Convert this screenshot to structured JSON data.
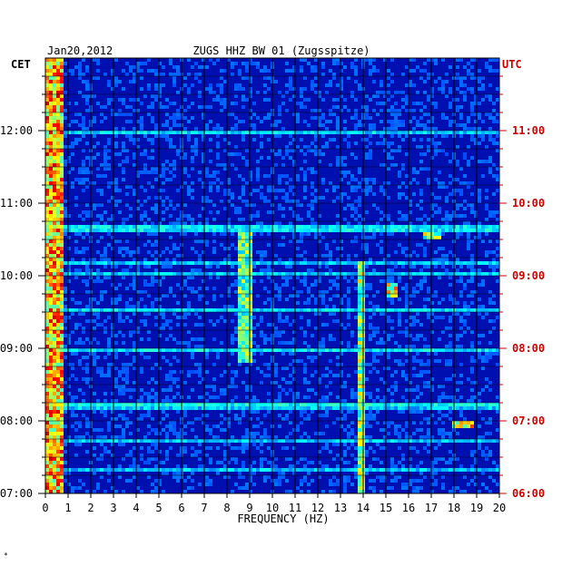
{
  "header": {
    "date": "Jan20,2012",
    "station": "ZUGS HHZ BW 01 (Zugsspitze)",
    "left_zone": "CET",
    "right_zone": "UTC"
  },
  "footer_mark": "*",
  "colors": {
    "background": "#ffffff",
    "utc_red": "#cc0000",
    "grid": "#000000",
    "spectrum_low": "#0000c8",
    "spectrum_high": "#ff0000"
  },
  "chart_data": {
    "type": "heatmap",
    "xlabel": "FREQUENCY (HZ)",
    "xlim": [
      0,
      20
    ],
    "x_ticks": [
      0,
      1,
      2,
      3,
      4,
      5,
      6,
      7,
      8,
      9,
      10,
      11,
      12,
      13,
      14,
      15,
      16,
      17,
      18,
      19,
      20
    ],
    "y_ticks_left": [
      "12:00",
      "11:00",
      "10:00",
      "09:00",
      "08:00",
      "07:00"
    ],
    "y_ticks_right": [
      "11:00",
      "10:00",
      "09:00",
      "08:00",
      "07:00",
      "06:00"
    ],
    "y_tick_hours_utc": [
      11,
      10,
      9,
      8,
      7,
      6
    ],
    "ylim_hours_utc": [
      6,
      12
    ],
    "colormap": "jet",
    "features": [
      {
        "freq": [
          0.0,
          0.8
        ],
        "hours_utc": [
          6,
          12
        ],
        "intensity": 0.8
      },
      {
        "freq": [
          13.7,
          14.0
        ],
        "hours_utc": [
          6,
          9.2
        ],
        "intensity": 0.6
      },
      {
        "freq": [
          8.5,
          9.2
        ],
        "hours_utc": [
          7.8,
          9.6
        ],
        "intensity": 0.55
      },
      {
        "freq": [
          15.0,
          15.6
        ],
        "hours_utc": [
          8.7,
          8.9
        ],
        "intensity": 0.7
      },
      {
        "freq": [
          18.0,
          18.8
        ],
        "hours_utc": [
          6.9,
          7.0
        ],
        "intensity": 0.75
      },
      {
        "freq": [
          16.6,
          17.4
        ],
        "hours_utc": [
          9.5,
          9.6
        ],
        "intensity": 0.6
      }
    ]
  }
}
